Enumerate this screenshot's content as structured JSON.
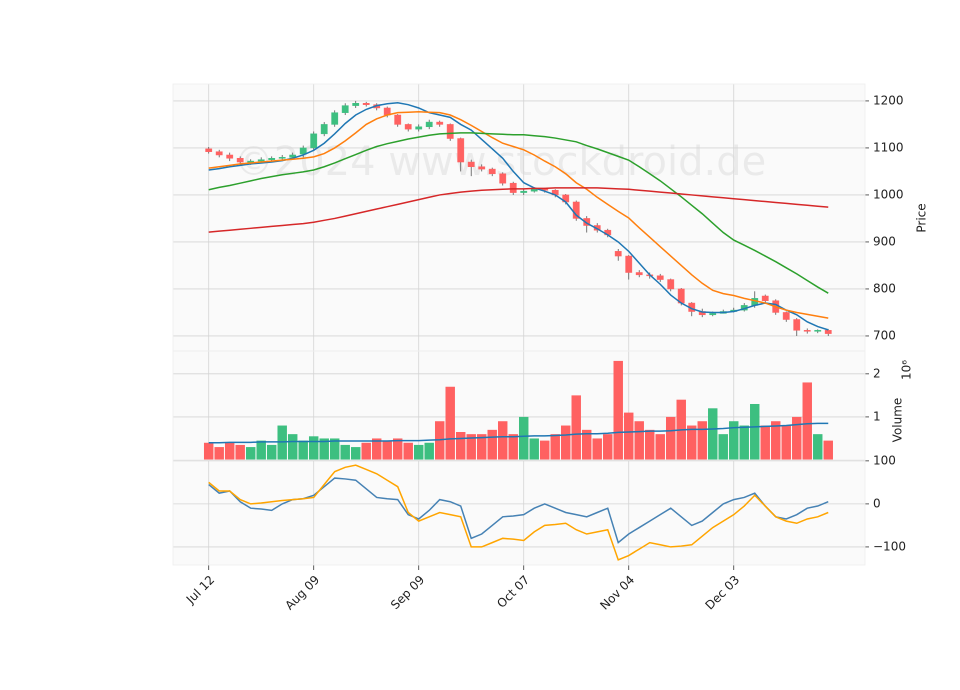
{
  "chart_data": {
    "type": "candlestick",
    "watermark": "©2024 www.stockdroid.de",
    "x": [
      0,
      1,
      2,
      3,
      4,
      5,
      6,
      7,
      8,
      9,
      10,
      11,
      12,
      13,
      14,
      15,
      16,
      17,
      18,
      19,
      20,
      21,
      22,
      23,
      24,
      25,
      26,
      27,
      28,
      29,
      30,
      31,
      32,
      33,
      34,
      35,
      36,
      37,
      38,
      39,
      40,
      41,
      42,
      43,
      44,
      45,
      46,
      47,
      48,
      49,
      50,
      51,
      52,
      53,
      54,
      55,
      56,
      57,
      58,
      59
    ],
    "xlim": [
      -3.4,
      62.5
    ],
    "xticks": [
      {
        "value": 0,
        "label": "Jul 12"
      },
      {
        "value": 10,
        "label": "Aug 09"
      },
      {
        "value": 20,
        "label": "Sep 09"
      },
      {
        "value": 30,
        "label": "Oct 07"
      },
      {
        "value": 40,
        "label": "Nov 04"
      },
      {
        "value": 50,
        "label": "Dec 03"
      }
    ],
    "ylabel": "Price",
    "ylim": [
      668,
      1236
    ],
    "yticks": [
      700,
      800,
      900,
      1000,
      1100,
      1200
    ],
    "grid": true,
    "up_color": "#3dbf80",
    "down_color": "#ff6161",
    "open": [
      1098,
      1092,
      1085,
      1078,
      1068,
      1072,
      1075,
      1078,
      1080,
      1087,
      1100,
      1130,
      1150,
      1175,
      1190,
      1195,
      1192,
      1185,
      1170,
      1150,
      1140,
      1145,
      1155,
      1150,
      1120,
      1070,
      1060,
      1055,
      1045,
      1025,
      1005,
      1008,
      1012,
      1010,
      1000,
      985,
      950,
      935,
      925,
      880,
      870,
      835,
      830,
      828,
      820,
      800,
      770,
      752,
      745,
      748,
      752,
      755,
      765,
      785,
      775,
      750,
      735,
      712,
      710,
      712
    ],
    "high": [
      1102,
      1096,
      1090,
      1082,
      1076,
      1080,
      1082,
      1085,
      1090,
      1105,
      1135,
      1155,
      1180,
      1195,
      1200,
      1198,
      1195,
      1188,
      1172,
      1152,
      1150,
      1160,
      1158,
      1152,
      1122,
      1075,
      1065,
      1058,
      1048,
      1028,
      1012,
      1016,
      1015,
      1012,
      1002,
      988,
      955,
      940,
      928,
      885,
      872,
      840,
      835,
      832,
      822,
      802,
      772,
      758,
      752,
      756,
      760,
      770,
      795,
      788,
      778,
      752,
      738,
      716,
      714,
      715
    ],
    "low": [
      1088,
      1080,
      1072,
      1062,
      1064,
      1068,
      1070,
      1072,
      1075,
      1080,
      1095,
      1125,
      1145,
      1170,
      1185,
      1188,
      1180,
      1165,
      1145,
      1135,
      1135,
      1140,
      1145,
      1115,
      1050,
      1040,
      1050,
      1040,
      1020,
      1000,
      1000,
      1005,
      1005,
      995,
      980,
      945,
      920,
      920,
      910,
      860,
      820,
      825,
      822,
      815,
      795,
      765,
      742,
      740,
      742,
      748,
      750,
      752,
      760,
      770,
      745,
      730,
      700,
      705,
      706,
      700
    ],
    "close": [
      1092,
      1085,
      1078,
      1070,
      1072,
      1075,
      1078,
      1080,
      1085,
      1100,
      1130,
      1150,
      1175,
      1190,
      1195,
      1192,
      1185,
      1170,
      1150,
      1140,
      1145,
      1155,
      1150,
      1120,
      1070,
      1060,
      1055,
      1045,
      1025,
      1005,
      1008,
      1012,
      1010,
      1000,
      985,
      950,
      935,
      925,
      915,
      870,
      835,
      830,
      828,
      820,
      800,
      770,
      752,
      745,
      748,
      752,
      755,
      765,
      780,
      775,
      750,
      735,
      712,
      710,
      712,
      705
    ],
    "series": [
      {
        "color": "#1f77b4",
        "values": [
          1053,
          1056,
          1060,
          1063,
          1066,
          1068,
          1070,
          1073,
          1078,
          1085,
          1095,
          1110,
          1130,
          1152,
          1170,
          1182,
          1190,
          1194,
          1196,
          1192,
          1185,
          1175,
          1170,
          1165,
          1150,
          1138,
          1118,
          1098,
          1078,
          1050,
          1026,
          1015,
          1008,
          1000,
          985,
          957,
          940,
          928,
          915,
          900,
          880,
          855,
          830,
          810,
          787,
          770,
          758,
          751,
          750,
          750,
          752,
          758,
          765,
          770,
          767,
          755,
          745,
          730,
          720,
          713
        ]
      },
      {
        "color": "#ff7f0e",
        "values": [
          1057,
          1060,
          1063,
          1066,
          1068,
          1070,
          1072,
          1074,
          1076,
          1078,
          1081,
          1088,
          1100,
          1115,
          1132,
          1150,
          1162,
          1170,
          1175,
          1176,
          1177,
          1176,
          1175,
          1170,
          1160,
          1148,
          1135,
          1122,
          1110,
          1103,
          1096,
          1085,
          1072,
          1060,
          1045,
          1026,
          1012,
          995,
          980,
          965,
          951,
          930,
          910,
          890,
          870,
          850,
          830,
          812,
          797,
          790,
          786,
          780,
          775,
          770,
          762,
          755,
          750,
          746,
          742,
          738
        ]
      },
      {
        "color": "#2ca02c",
        "values": [
          1011,
          1016,
          1020,
          1025,
          1030,
          1035,
          1039,
          1043,
          1046,
          1049,
          1053,
          1060,
          1068,
          1077,
          1086,
          1095,
          1103,
          1109,
          1114,
          1119,
          1123,
          1127,
          1130,
          1131,
          1132,
          1132,
          1131,
          1130,
          1129,
          1128,
          1128,
          1126,
          1124,
          1121,
          1117,
          1113,
          1105,
          1098,
          1090,
          1082,
          1074,
          1060,
          1045,
          1030,
          1013,
          996,
          978,
          960,
          940,
          920,
          904,
          893,
          882,
          870,
          858,
          845,
          832,
          818,
          804,
          791
        ]
      },
      {
        "color": "#d62728",
        "values": [
          921,
          923,
          925,
          927,
          929,
          931,
          933,
          935,
          937,
          939,
          942,
          946,
          950,
          955,
          960,
          965,
          970,
          975,
          980,
          985,
          990,
          995,
          1000,
          1003,
          1006,
          1008,
          1010,
          1011,
          1012,
          1013,
          1013,
          1014,
          1014,
          1015,
          1015,
          1015,
          1015,
          1015,
          1014,
          1013,
          1012,
          1010,
          1008,
          1006,
          1004,
          1002,
          1000,
          998,
          996,
          994,
          992,
          990,
          988,
          986,
          984,
          982,
          980,
          978,
          976,
          974
        ]
      }
    ],
    "volume": {
      "ylabel": "Volume",
      "scale_label": "10⁶",
      "ylim": [
        0,
        2.53
      ],
      "yticks": [
        1,
        2
      ],
      "values": [
        0.4,
        0.3,
        0.4,
        0.35,
        0.3,
        0.45,
        0.35,
        0.8,
        0.6,
        0.45,
        0.55,
        0.5,
        0.5,
        0.35,
        0.3,
        0.4,
        0.5,
        0.45,
        0.5,
        0.4,
        0.35,
        0.4,
        0.9,
        1.7,
        0.65,
        0.6,
        0.6,
        0.7,
        0.9,
        0.6,
        1.0,
        0.5,
        0.45,
        0.6,
        0.8,
        1.5,
        0.7,
        0.5,
        0.6,
        2.3,
        1.1,
        0.9,
        0.7,
        0.6,
        1.0,
        1.4,
        0.8,
        0.9,
        1.2,
        0.6,
        0.9,
        0.8,
        1.3,
        0.8,
        0.9,
        0.8,
        1.0,
        1.8,
        0.6,
        0.45
      ],
      "ma": {
        "color": "#1f77b4",
        "values": [
          0.4,
          0.4,
          0.41,
          0.41,
          0.41,
          0.42,
          0.42,
          0.42,
          0.43,
          0.43,
          0.43,
          0.43,
          0.44,
          0.44,
          0.44,
          0.44,
          0.44,
          0.44,
          0.45,
          0.45,
          0.45,
          0.46,
          0.47,
          0.49,
          0.5,
          0.51,
          0.52,
          0.53,
          0.54,
          0.54,
          0.55,
          0.56,
          0.56,
          0.57,
          0.58,
          0.6,
          0.61,
          0.61,
          0.62,
          0.64,
          0.65,
          0.66,
          0.67,
          0.67,
          0.68,
          0.7,
          0.71,
          0.71,
          0.72,
          0.73,
          0.75,
          0.76,
          0.77,
          0.78,
          0.79,
          0.8,
          0.82,
          0.84,
          0.85,
          0.85
        ]
      }
    },
    "oscillator": {
      "ylim": [
        -142,
        102
      ],
      "yticks": [
        100,
        0,
        {
          "value": -100,
          "label": "−100"
        }
      ],
      "series": [
        {
          "color": "#4682b4",
          "values": [
            45,
            25,
            30,
            5,
            -10,
            -12,
            -15,
            0,
            10,
            12,
            20,
            40,
            60,
            58,
            55,
            35,
            15,
            12,
            10,
            -25,
            -35,
            -15,
            10,
            5,
            -5,
            -80,
            -70,
            -50,
            -30,
            -28,
            -25,
            -10,
            0,
            -10,
            -20,
            -25,
            -30,
            -20,
            -10,
            -90,
            -70,
            -55,
            -40,
            -25,
            -10,
            -30,
            -50,
            -40,
            -20,
            0,
            10,
            15,
            25,
            -5,
            -30,
            -35,
            -25,
            -10,
            -5,
            5
          ]
        },
        {
          "color": "#ffa500",
          "values": [
            50,
            30,
            30,
            10,
            0,
            2,
            5,
            8,
            10,
            12,
            15,
            45,
            75,
            85,
            90,
            80,
            70,
            55,
            40,
            -20,
            -40,
            -30,
            -20,
            -25,
            -30,
            -100,
            -100,
            -90,
            -80,
            -82,
            -85,
            -65,
            -50,
            -48,
            -45,
            -60,
            -70,
            -65,
            -60,
            -130,
            -120,
            -105,
            -90,
            -95,
            -100,
            -98,
            -95,
            -75,
            -55,
            -40,
            -25,
            -5,
            20,
            -5,
            -30,
            -40,
            -45,
            -35,
            -30,
            -20
          ]
        }
      ]
    }
  }
}
